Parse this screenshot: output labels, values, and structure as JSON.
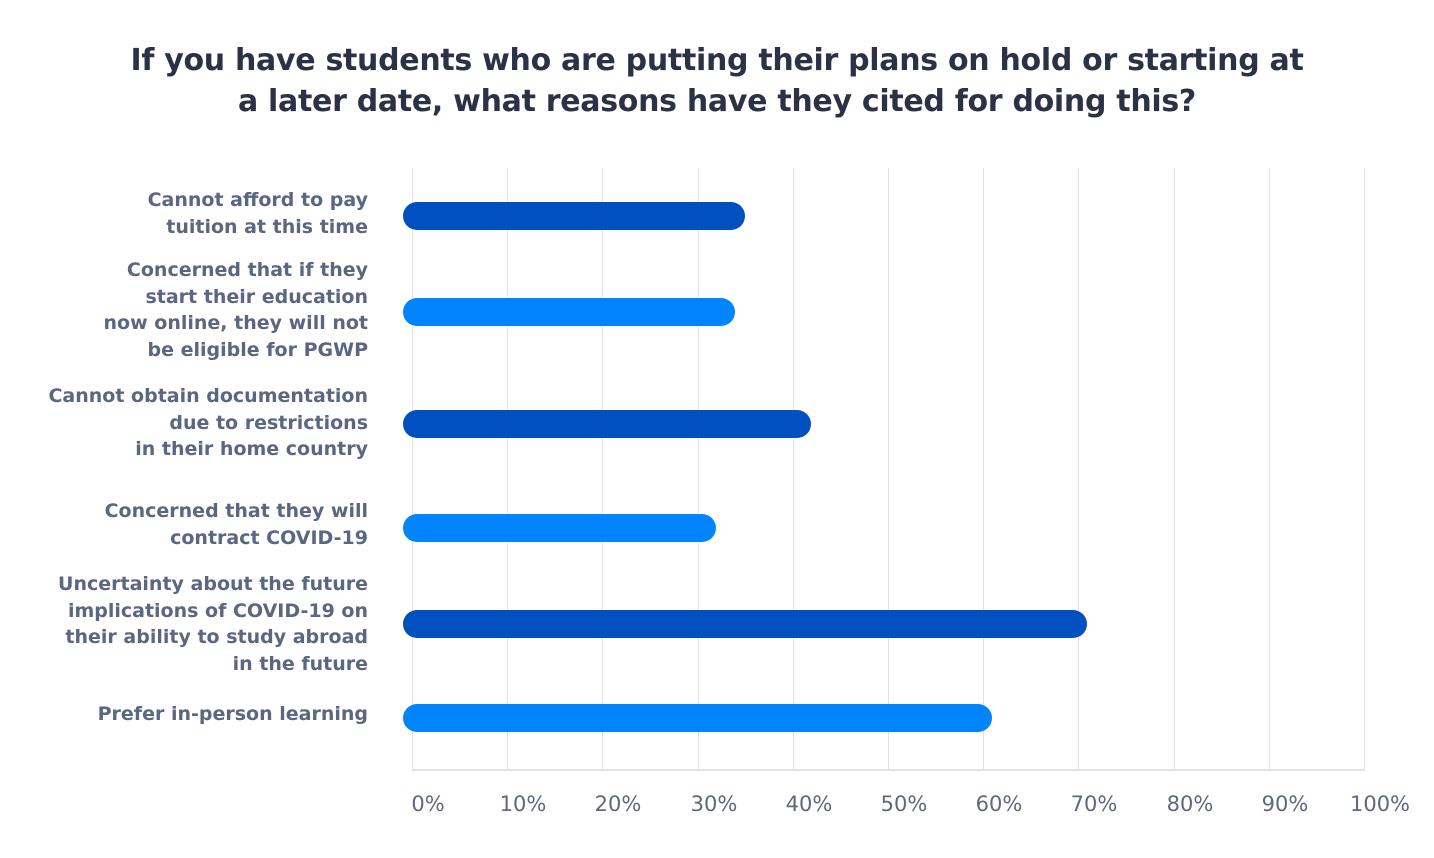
{
  "title": {
    "line1": "If you have students who are putting their plans on hold or starting at",
    "line2": "a later date, what reasons have they cited for doing this?"
  },
  "colors": {
    "dark_bar": "#0050C0",
    "light_bar": "#0085FF",
    "gridline": "#e1e1e8",
    "title_text": "#2b3245",
    "label_text": "#5b6680",
    "tick_text": "#5f6880"
  },
  "axis": {
    "ticks": [
      "0%",
      "10%",
      "20%",
      "30%",
      "40%",
      "50%",
      "60%",
      "70%",
      "80%",
      "90%",
      "100%"
    ]
  },
  "categories": [
    {
      "lines": [
        "Cannot afford to pay",
        "tuition at this time"
      ],
      "value": 34,
      "color": "dark"
    },
    {
      "lines": [
        "Concerned that if they",
        "start their education",
        "now online, they will not",
        "be eligible for PGWP"
      ],
      "value": 33,
      "color": "light"
    },
    {
      "lines": [
        "Cannot obtain documentation",
        "due to restrictions",
        "in their home country"
      ],
      "value": 41,
      "color": "dark"
    },
    {
      "lines": [
        "Concerned that they will",
        "contract COVID-19"
      ],
      "value": 31,
      "color": "light"
    },
    {
      "lines": [
        "Uncertainty about the future",
        "implications of COVID-19 on",
        "their ability to study abroad",
        "in the future"
      ],
      "value": 70,
      "color": "dark"
    },
    {
      "lines": [
        "Prefer in-person learning"
      ],
      "value": 60,
      "color": "light"
    }
  ],
  "chart_data": {
    "type": "bar",
    "orientation": "horizontal",
    "title": "If you have students who are putting their plans on hold or starting at a later date, what reasons have they cited for doing this?",
    "categories": [
      "Cannot afford to pay tuition at this time",
      "Concerned that if they start their education now online, they will not be eligible for PGWP",
      "Cannot obtain documentation due to restrictions in their home country",
      "Concerned that they will contract COVID-19",
      "Uncertainty about the future implications of COVID-19 on their ability to study abroad in the future",
      "Prefer in-person learning"
    ],
    "values": [
      34,
      33,
      41,
      31,
      70,
      60
    ],
    "bar_colors": [
      "#0050C0",
      "#0085FF",
      "#0050C0",
      "#0085FF",
      "#0050C0",
      "#0085FF"
    ],
    "xlabel": "",
    "ylabel": "",
    "xlim": [
      0,
      100
    ],
    "x_tick_labels": [
      "0%",
      "10%",
      "20%",
      "30%",
      "40%",
      "50%",
      "60%",
      "70%",
      "80%",
      "90%",
      "100%"
    ],
    "grid": "vertical",
    "legend": "none"
  }
}
